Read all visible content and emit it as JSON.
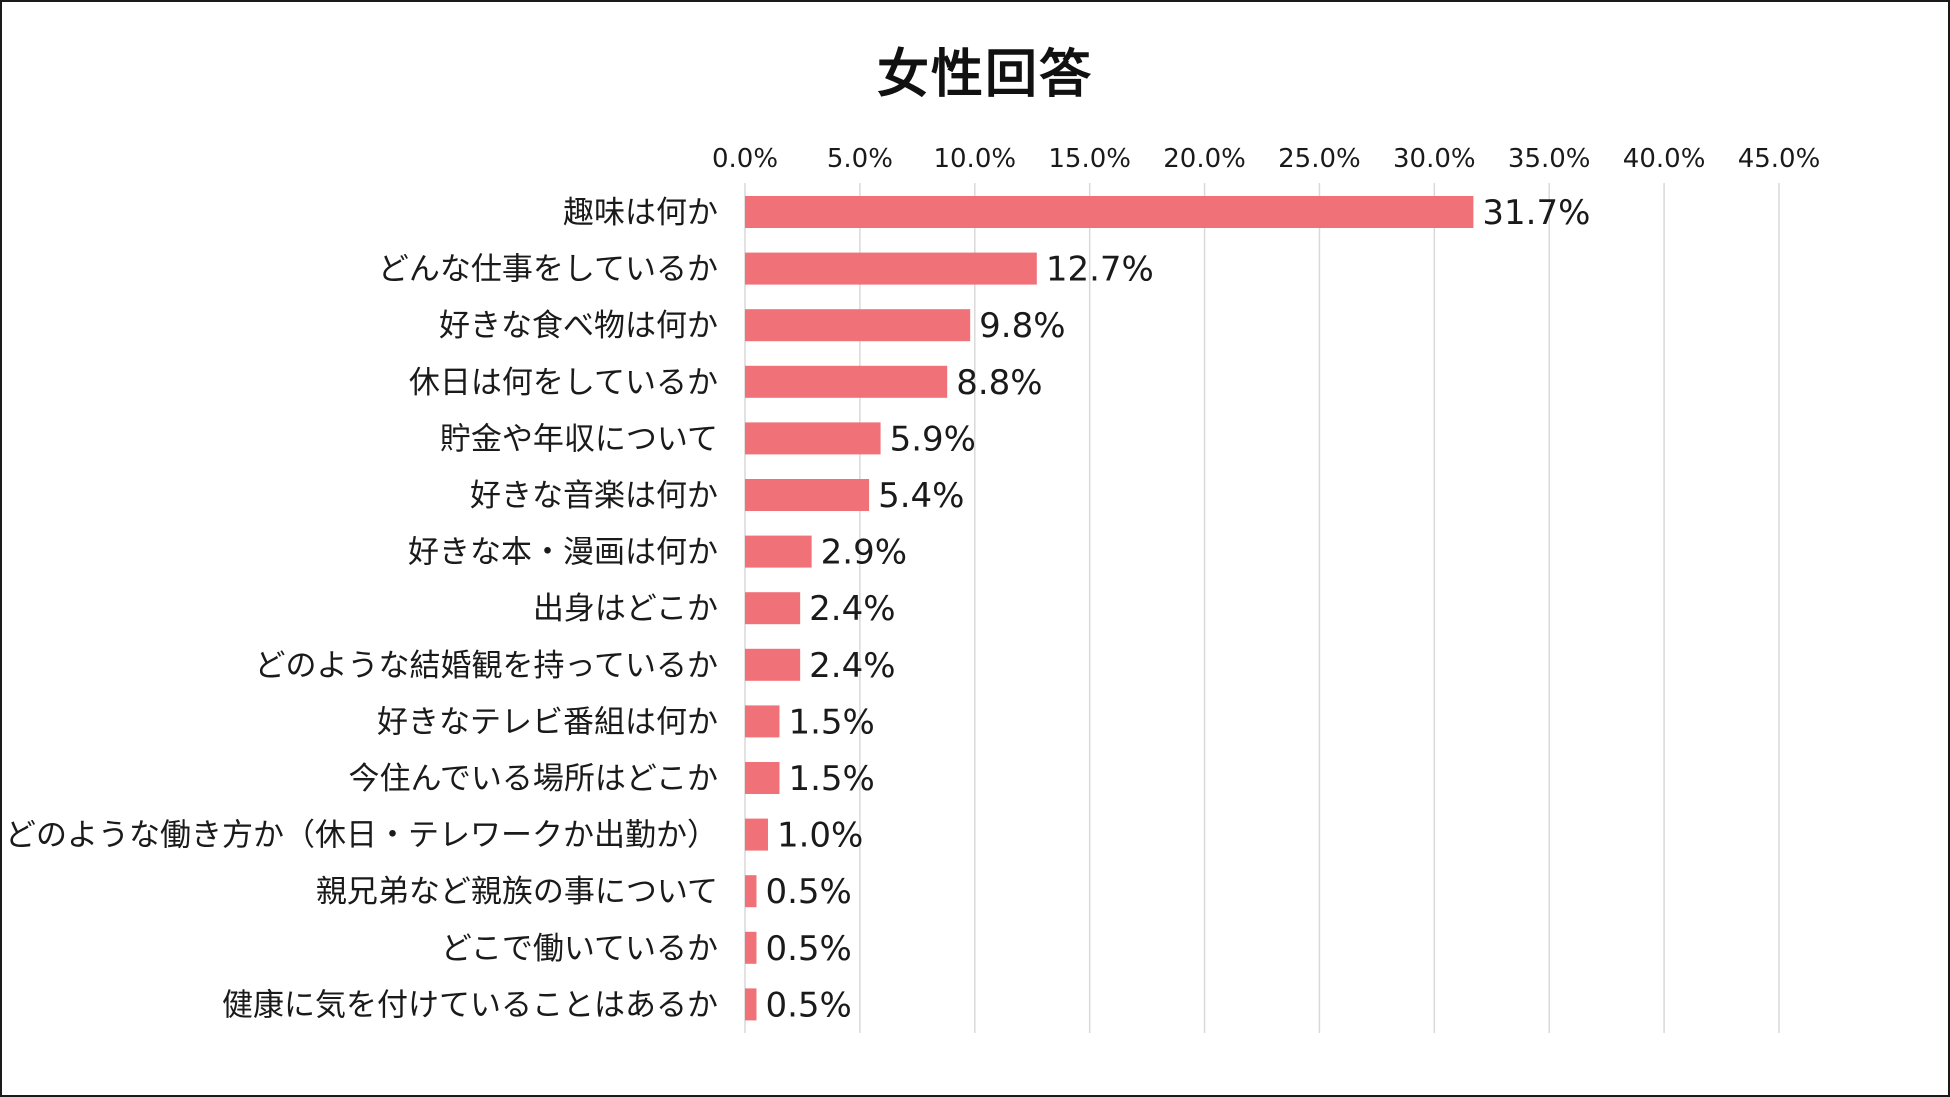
{
  "chart_data": {
    "type": "bar",
    "orientation": "horizontal",
    "title": "女性回答",
    "xlabel": "",
    "ylabel": "",
    "xlim": [
      0,
      45
    ],
    "ticks": [
      0,
      5,
      10,
      15,
      20,
      25,
      30,
      35,
      40,
      45
    ],
    "tick_labels": [
      "0.0%",
      "5.0%",
      "10.0%",
      "15.0%",
      "20.0%",
      "25.0%",
      "30.0%",
      "35.0%",
      "40.0%",
      "45.0%"
    ],
    "axis_position": "top",
    "grid": true,
    "legend": "none",
    "bar_color": "#f07178",
    "categories": [
      "趣味は何か",
      "どんな仕事をしているか",
      "好きな食べ物は何か",
      "休日は何をしているか",
      "貯金や年収について",
      "好きな音楽は何か",
      "好きな本・漫画は何か",
      "出身はどこか",
      "どのような結婚観を持っているか",
      "好きなテレビ番組は何か",
      "今住んでいる場所はどこか",
      "どのような働き方か（休日・テレワークか出勤か）",
      "親兄弟など親族の事について",
      "どこで働いているか",
      "健康に気を付けていることはあるか"
    ],
    "values": [
      31.7,
      12.7,
      9.8,
      8.8,
      5.9,
      5.4,
      2.9,
      2.4,
      2.4,
      1.5,
      1.5,
      1.0,
      0.5,
      0.5,
      0.5
    ],
    "value_labels": [
      "31.7%",
      "12.7%",
      "9.8%",
      "8.8%",
      "5.9%",
      "5.4%",
      "2.9%",
      "2.4%",
      "2.4%",
      "1.5%",
      "1.5%",
      "1.0%",
      "0.5%",
      "0.5%",
      "0.5%"
    ]
  }
}
